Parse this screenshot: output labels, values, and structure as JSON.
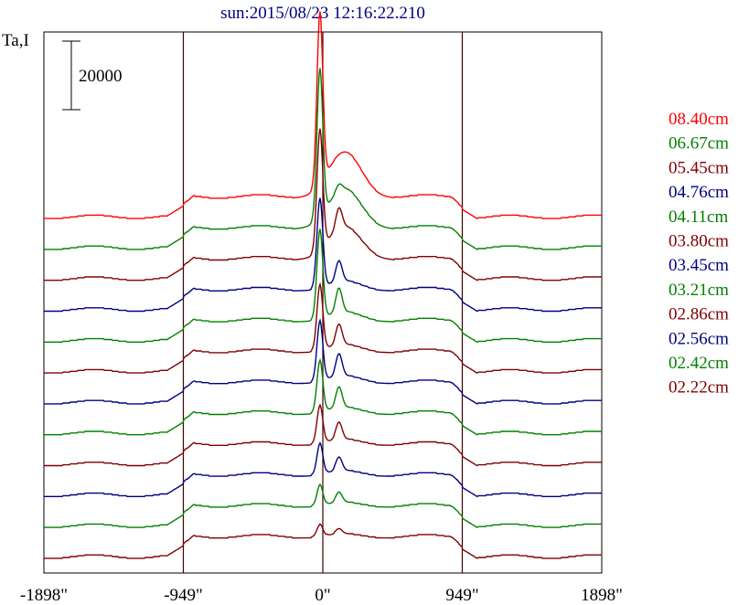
{
  "chart_data": {
    "type": "line",
    "title": "sun:2015/08/23 12:16:22.210",
    "ylabel": "Ta,I",
    "scale_bar_label": "20000",
    "x_ticks": [
      "-1898\"",
      "-949\"",
      "0\"",
      "949\"",
      "1898\""
    ],
    "xlim": [
      -1898,
      1898
    ],
    "vertical_lines": [
      -949,
      0,
      949
    ],
    "legend_position": "right",
    "colors": {
      "red": "#ff0000",
      "green": "#008000",
      "maroon": "#800000",
      "navy": "#000080",
      "axis": "#000000"
    },
    "series": [
      {
        "name": "08.40cm",
        "color": "#ff0000",
        "baseline": 0,
        "peak": 50000,
        "sec": 0
      },
      {
        "name": "06.67cm",
        "color": "#008000",
        "baseline": 1,
        "peak": 43000,
        "sec": 2000
      },
      {
        "name": "05.45cm",
        "color": "#800000",
        "baseline": 2,
        "peak": 35000,
        "sec": 6000
      },
      {
        "name": "04.76cm",
        "color": "#000080",
        "baseline": 3,
        "peak": 26000,
        "sec": 6000
      },
      {
        "name": "04.11cm",
        "color": "#008000",
        "baseline": 4,
        "peak": 26000,
        "sec": 7000
      },
      {
        "name": "03.80cm",
        "color": "#800000",
        "baseline": 5,
        "peak": 19000,
        "sec": 6000
      },
      {
        "name": "03.45cm",
        "color": "#000080",
        "baseline": 6,
        "peak": 17500,
        "sec": 6500
      },
      {
        "name": "03.21cm",
        "color": "#008000",
        "baseline": 7,
        "peak": 15000,
        "sec": 6000
      },
      {
        "name": "02.86cm",
        "color": "#800000",
        "baseline": 8,
        "peak": 11000,
        "sec": 5000
      },
      {
        "name": "02.56cm",
        "color": "#000080",
        "baseline": 9,
        "peak": 9000,
        "sec": 4000
      },
      {
        "name": "02.42cm",
        "color": "#008000",
        "baseline": 10,
        "peak": 6000,
        "sec": 3000
      },
      {
        "name": "02.22cm",
        "color": "#800000",
        "baseline": 11,
        "peak": 3500,
        "sec": 1500
      }
    ]
  }
}
